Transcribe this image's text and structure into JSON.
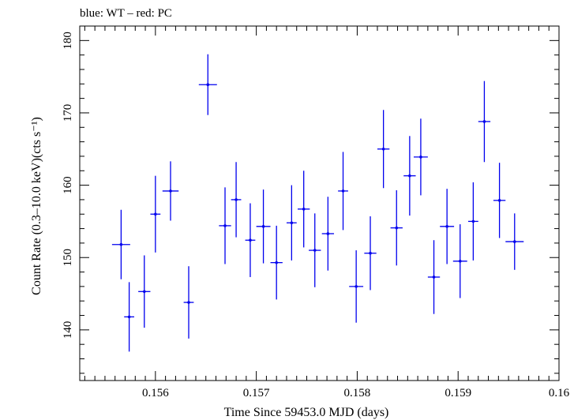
{
  "header": {
    "label": "blue: WT – red: PC"
  },
  "colors": {
    "wt": "#0000ee",
    "pc": "#ee0000",
    "axis": "#000000"
  },
  "chart_data": {
    "type": "scatter",
    "title": "blue: WT – red: PC",
    "xlabel": "Time Since 59453.0 MJD (days)",
    "ylabel": "Count Rate (0.3–10.0 keV)(cts s⁻¹)",
    "xlim": [
      0.15525,
      0.16
    ],
    "ylim": [
      133,
      182
    ],
    "x_ticks": [
      0.156,
      0.157,
      0.158,
      0.159,
      0.16
    ],
    "x_tick_labels": [
      "0.156",
      "0.157",
      "0.158",
      "0.159",
      "0.16"
    ],
    "y_ticks": [
      140,
      150,
      160,
      170,
      180
    ],
    "y_tick_labels": [
      "140",
      "150",
      "160",
      "170",
      "180"
    ],
    "grid": false,
    "series": [
      {
        "name": "WT",
        "color": "#0000ee",
        "points": [
          {
            "x": 0.15566,
            "xerr": 9e-05,
            "y": 151.8,
            "yerr": 4.8
          },
          {
            "x": 0.15574,
            "xerr": 5e-05,
            "y": 141.8,
            "yerr": 4.8
          },
          {
            "x": 0.15589,
            "xerr": 6e-05,
            "y": 145.3,
            "yerr": 5.0
          },
          {
            "x": 0.156,
            "xerr": 5e-05,
            "y": 156.0,
            "yerr": 5.3
          },
          {
            "x": 0.15615,
            "xerr": 8e-05,
            "y": 159.2,
            "yerr": 4.1
          },
          {
            "x": 0.15633,
            "xerr": 5e-05,
            "y": 143.8,
            "yerr": 5.0
          },
          {
            "x": 0.15652,
            "xerr": 9e-05,
            "y": 173.9,
            "yerr": 4.2
          },
          {
            "x": 0.15669,
            "xerr": 6e-05,
            "y": 154.4,
            "yerr": 5.3
          },
          {
            "x": 0.1568,
            "xerr": 5e-05,
            "y": 158.0,
            "yerr": 5.2
          },
          {
            "x": 0.15694,
            "xerr": 5e-05,
            "y": 152.4,
            "yerr": 5.1
          },
          {
            "x": 0.15707,
            "xerr": 7e-05,
            "y": 154.3,
            "yerr": 5.1
          },
          {
            "x": 0.1572,
            "xerr": 6e-05,
            "y": 149.3,
            "yerr": 5.1
          },
          {
            "x": 0.15735,
            "xerr": 5e-05,
            "y": 154.8,
            "yerr": 5.2
          },
          {
            "x": 0.15747,
            "xerr": 6e-05,
            "y": 156.7,
            "yerr": 5.3
          },
          {
            "x": 0.15758,
            "xerr": 6e-05,
            "y": 151.0,
            "yerr": 5.1
          },
          {
            "x": 0.15771,
            "xerr": 6e-05,
            "y": 153.3,
            "yerr": 5.1
          },
          {
            "x": 0.15786,
            "xerr": 5e-05,
            "y": 159.2,
            "yerr": 5.4
          },
          {
            "x": 0.15799,
            "xerr": 7e-05,
            "y": 146.0,
            "yerr": 5.0
          },
          {
            "x": 0.15813,
            "xerr": 6e-05,
            "y": 150.6,
            "yerr": 5.1
          },
          {
            "x": 0.15826,
            "xerr": 6e-05,
            "y": 165.0,
            "yerr": 5.4
          },
          {
            "x": 0.15839,
            "xerr": 6e-05,
            "y": 154.1,
            "yerr": 5.2
          },
          {
            "x": 0.15852,
            "xerr": 6e-05,
            "y": 161.3,
            "yerr": 5.5
          },
          {
            "x": 0.15863,
            "xerr": 7e-05,
            "y": 163.9,
            "yerr": 5.3
          },
          {
            "x": 0.15876,
            "xerr": 6e-05,
            "y": 147.3,
            "yerr": 5.1
          },
          {
            "x": 0.15889,
            "xerr": 7e-05,
            "y": 154.3,
            "yerr": 5.2
          },
          {
            "x": 0.15902,
            "xerr": 7e-05,
            "y": 149.5,
            "yerr": 5.1
          },
          {
            "x": 0.15915,
            "xerr": 5e-05,
            "y": 155.0,
            "yerr": 5.4
          },
          {
            "x": 0.15926,
            "xerr": 6e-05,
            "y": 168.8,
            "yerr": 5.6
          },
          {
            "x": 0.15941,
            "xerr": 6e-05,
            "y": 157.9,
            "yerr": 5.2
          },
          {
            "x": 0.15956,
            "xerr": 9e-05,
            "y": 152.2,
            "yerr": 3.9
          }
        ]
      }
    ]
  }
}
